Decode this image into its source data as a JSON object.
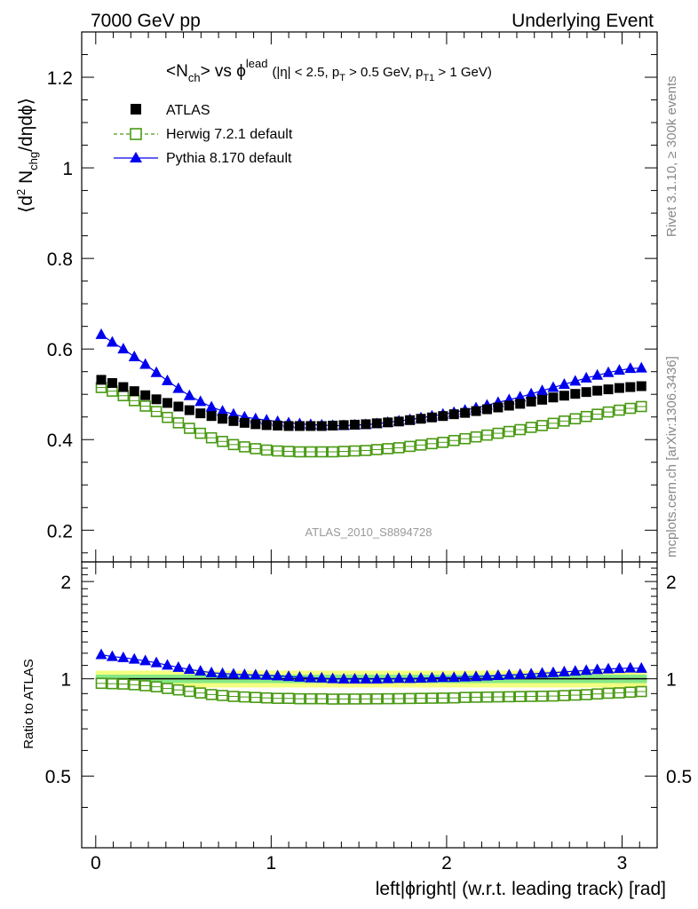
{
  "header": {
    "left": "7000 GeV pp",
    "right": "Underlying Event"
  },
  "side_labels": {
    "rivet": "Rivet 3.1.10, ≥ 300k events",
    "mcplots": "mcplots.cern.ch [arXiv:1306.3436]"
  },
  "watermark": "ATLAS_2010_S8894728",
  "plot_title": {
    "main": "<N",
    "main_sub": "ch",
    "main_rest": "> vs ϕ",
    "main_sup": "lead",
    "cuts_1": "(|η| < 2.5, p",
    "cuts_1_sub": "T",
    "cuts_2": " > 0.5 GeV, p",
    "cuts_2_sub": "T1",
    "cuts_3": " > 1 GeV)"
  },
  "upper_ylabel": {
    "a": "⟨d",
    "sup": "2",
    "b": " N",
    "sub": "chg",
    "c": "/dηdϕ⟩"
  },
  "lower_ylabel": "Ratio to ATLAS",
  "xlabel": "left|ϕright| (w.r.t. leading track) [rad]",
  "colors": {
    "atlas": "#000000",
    "herwig": "#4a9a14",
    "pythia": "#0000ee",
    "band_inner": "#86e886",
    "band_outer": "#f4ff80"
  },
  "chart_data": {
    "type": "scatter",
    "x": [
      0.0314,
      0.0942,
      0.1571,
      0.2199,
      0.2827,
      0.3456,
      0.4084,
      0.4712,
      0.5341,
      0.5969,
      0.6597,
      0.7226,
      0.7854,
      0.8482,
      0.9111,
      0.9739,
      1.0367,
      1.0996,
      1.1624,
      1.2252,
      1.2881,
      1.3509,
      1.4137,
      1.4765,
      1.5394,
      1.6022,
      1.665,
      1.7279,
      1.7907,
      1.8535,
      1.9164,
      1.9792,
      2.042,
      2.1049,
      2.1677,
      2.2305,
      2.2934,
      2.3562,
      2.419,
      2.4819,
      2.5447,
      2.6075,
      2.6704,
      2.7332,
      2.796,
      2.8588,
      2.9217,
      2.9845,
      3.0473,
      3.1102
    ],
    "upper": {
      "xlim": [
        -0.08,
        3.2
      ],
      "ylim": [
        0.13,
        1.3
      ],
      "yticks": [
        "0.2",
        "0.4",
        "0.6",
        "0.8",
        "1",
        "1.2"
      ],
      "xticks": [
        "0",
        "1",
        "2",
        "3"
      ]
    },
    "lower": {
      "ylim": [
        0.3,
        2.3
      ],
      "yticks": [
        "0.5",
        "1",
        "2"
      ],
      "band_inner": 0.03,
      "band_outer": 0.06
    },
    "series": [
      {
        "name": "ATLAS",
        "marker": "filled-square",
        "values": [
          0.532,
          0.525,
          0.516,
          0.507,
          0.498,
          0.489,
          0.481,
          0.473,
          0.465,
          0.458,
          0.452,
          0.446,
          0.441,
          0.437,
          0.434,
          0.432,
          0.431,
          0.43,
          0.43,
          0.43,
          0.43,
          0.431,
          0.432,
          0.433,
          0.434,
          0.436,
          0.438,
          0.44,
          0.443,
          0.446,
          0.449,
          0.452,
          0.456,
          0.459,
          0.463,
          0.467,
          0.471,
          0.475,
          0.479,
          0.484,
          0.488,
          0.493,
          0.497,
          0.501,
          0.505,
          0.508,
          0.511,
          0.514,
          0.516,
          0.518
        ]
      },
      {
        "name": "Herwig 7.2.1 default",
        "marker": "open-square",
        "style": "dashed",
        "values": [
          0.515,
          0.507,
          0.497,
          0.486,
          0.474,
          0.462,
          0.449,
          0.437,
          0.425,
          0.414,
          0.404,
          0.396,
          0.389,
          0.384,
          0.38,
          0.377,
          0.375,
          0.374,
          0.373,
          0.373,
          0.373,
          0.373,
          0.374,
          0.375,
          0.376,
          0.378,
          0.38,
          0.382,
          0.385,
          0.388,
          0.391,
          0.394,
          0.398,
          0.402,
          0.406,
          0.41,
          0.414,
          0.418,
          0.422,
          0.427,
          0.431,
          0.436,
          0.441,
          0.446,
          0.451,
          0.456,
          0.461,
          0.465,
          0.469,
          0.473
        ]
      },
      {
        "name": "Pythia 8.170 default",
        "marker": "filled-triangle",
        "style": "solid",
        "values": [
          0.632,
          0.615,
          0.6,
          0.583,
          0.566,
          0.548,
          0.53,
          0.513,
          0.497,
          0.484,
          0.472,
          0.463,
          0.456,
          0.45,
          0.446,
          0.443,
          0.44,
          0.437,
          0.435,
          0.433,
          0.432,
          0.431,
          0.431,
          0.432,
          0.433,
          0.435,
          0.438,
          0.441,
          0.444,
          0.448,
          0.452,
          0.456,
          0.46,
          0.465,
          0.47,
          0.476,
          0.482,
          0.488,
          0.494,
          0.501,
          0.508,
          0.515,
          0.522,
          0.529,
          0.536,
          0.542,
          0.548,
          0.553,
          0.557,
          0.558
        ]
      }
    ]
  }
}
